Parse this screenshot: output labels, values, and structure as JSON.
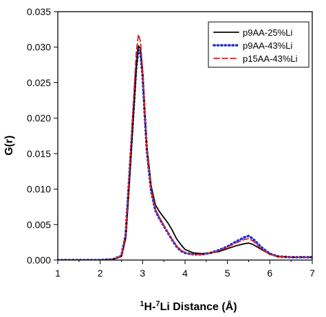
{
  "chart_data": {
    "type": "line",
    "title": "",
    "xlabel_parts": {
      "sup1": "1",
      "t1": "H-",
      "sup2": "7",
      "t2": "Li Distance (Å)"
    },
    "ylabel": "G(r)",
    "xlim": [
      1,
      7
    ],
    "ylim": [
      0.0,
      0.035
    ],
    "x_ticks": [
      "1",
      "2",
      "3",
      "4",
      "5",
      "6",
      "7"
    ],
    "y_ticks": [
      "0.000",
      "0.005",
      "0.010",
      "0.015",
      "0.020",
      "0.025",
      "0.030",
      "0.035"
    ],
    "grid": false,
    "legend_position": "top-right",
    "series": [
      {
        "name": "p9AA-25%Li",
        "color": "#000000",
        "dash": "solid",
        "x": [
          1.0,
          2.0,
          2.3,
          2.5,
          2.6,
          2.7,
          2.8,
          2.85,
          2.9,
          2.95,
          3.0,
          3.05,
          3.1,
          3.2,
          3.3,
          3.4,
          3.5,
          3.6,
          3.7,
          3.8,
          3.9,
          4.0,
          4.2,
          4.4,
          4.6,
          4.8,
          5.0,
          5.2,
          5.4,
          5.5,
          5.6,
          5.8,
          6.0,
          6.2,
          6.5,
          7.0
        ],
        "y": [
          0.0,
          0.0,
          0.0001,
          0.0005,
          0.003,
          0.012,
          0.022,
          0.027,
          0.0302,
          0.0298,
          0.0265,
          0.021,
          0.016,
          0.0105,
          0.0078,
          0.0068,
          0.006,
          0.0052,
          0.0042,
          0.003,
          0.0022,
          0.0015,
          0.001,
          0.0009,
          0.001,
          0.0012,
          0.0016,
          0.002,
          0.0023,
          0.0024,
          0.0022,
          0.0015,
          0.0008,
          0.0005,
          0.0004,
          0.0004
        ]
      },
      {
        "name": "p9AA-43%Li",
        "color": "#1f2fd9",
        "dash": "dotted",
        "x": [
          1.0,
          2.0,
          2.3,
          2.5,
          2.6,
          2.7,
          2.8,
          2.85,
          2.9,
          2.95,
          3.0,
          3.05,
          3.1,
          3.2,
          3.3,
          3.4,
          3.5,
          3.6,
          3.7,
          3.8,
          3.9,
          4.0,
          4.2,
          4.4,
          4.6,
          4.8,
          5.0,
          5.2,
          5.4,
          5.5,
          5.6,
          5.8,
          6.0,
          6.2,
          6.5,
          7.0
        ],
        "y": [
          0.0,
          0.0,
          0.0001,
          0.0006,
          0.0035,
          0.013,
          0.0225,
          0.0272,
          0.0296,
          0.0292,
          0.026,
          0.0205,
          0.0155,
          0.0098,
          0.007,
          0.0058,
          0.0048,
          0.0038,
          0.0028,
          0.0019,
          0.0013,
          0.001,
          0.0008,
          0.0008,
          0.001,
          0.0014,
          0.0019,
          0.0026,
          0.0032,
          0.0034,
          0.003,
          0.0018,
          0.0009,
          0.0005,
          0.0004,
          0.0004
        ]
      },
      {
        "name": "p15AA-43%Li",
        "color": "#e02020",
        "dash": "dashed",
        "x": [
          1.0,
          2.0,
          2.3,
          2.5,
          2.6,
          2.7,
          2.8,
          2.85,
          2.9,
          2.95,
          3.0,
          3.05,
          3.1,
          3.2,
          3.3,
          3.4,
          3.5,
          3.6,
          3.7,
          3.8,
          3.9,
          4.0,
          4.2,
          4.4,
          4.6,
          4.8,
          5.0,
          5.2,
          5.4,
          5.5,
          5.6,
          5.8,
          6.0,
          6.2,
          6.5,
          7.0
        ],
        "y": [
          0.0,
          0.0,
          0.0001,
          0.0006,
          0.0035,
          0.0135,
          0.024,
          0.0292,
          0.0318,
          0.0308,
          0.0268,
          0.021,
          0.0158,
          0.01,
          0.0072,
          0.006,
          0.0049,
          0.0039,
          0.0029,
          0.002,
          0.0014,
          0.0011,
          0.0008,
          0.0008,
          0.001,
          0.0013,
          0.0018,
          0.0024,
          0.0029,
          0.003,
          0.0027,
          0.0016,
          0.0008,
          0.0005,
          0.0004,
          0.0004
        ]
      }
    ]
  }
}
